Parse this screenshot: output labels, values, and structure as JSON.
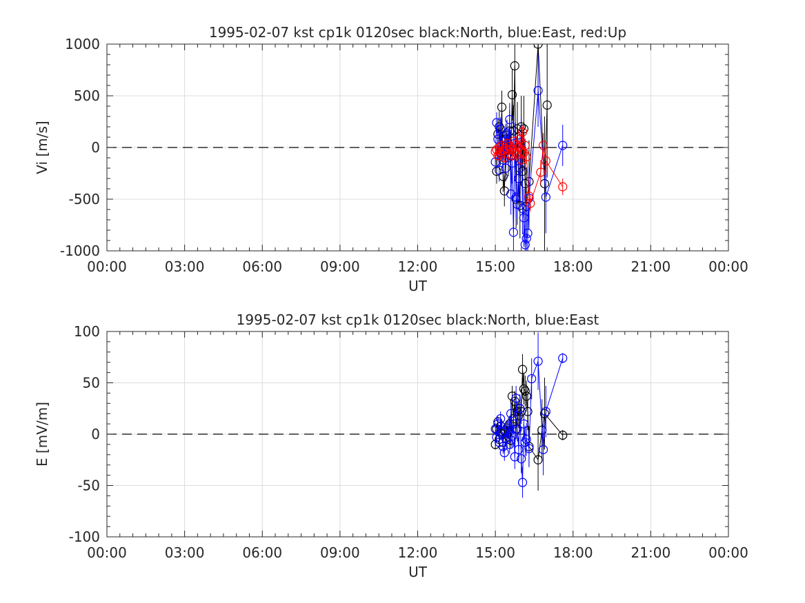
{
  "chart_data": [
    {
      "type": "scatter",
      "title": "1995-02-07 kst cp1k 0120sec black:North, blue:East, red:Up",
      "xlabel": "UT",
      "ylabel": "Vi [m/s]",
      "xlim": [
        0,
        24
      ],
      "ylim": [
        -1000,
        1000
      ],
      "x_tick_values": [
        0,
        3,
        6,
        9,
        12,
        15,
        18,
        21,
        24
      ],
      "x_ticks": [
        "00:00",
        "03:00",
        "06:00",
        "09:00",
        "12:00",
        "15:00",
        "18:00",
        "21:00",
        "00:00"
      ],
      "y_tick_values": [
        -1000,
        -500,
        0,
        500,
        1000
      ],
      "y_ticks": [
        "-1000",
        "-500",
        "0",
        "500",
        "1000"
      ],
      "grid": true,
      "zero_line": "dashed",
      "series": [
        {
          "color": "#000000",
          "x": [
            15.05,
            15.1,
            15.15,
            15.2,
            15.25,
            15.3,
            15.35,
            15.4,
            15.45,
            15.5,
            15.55,
            15.6,
            15.65,
            15.7,
            15.75,
            15.8,
            15.85,
            15.9,
            15.95,
            16.0,
            16.05,
            16.1,
            16.15,
            16.2,
            16.3,
            16.65,
            16.9,
            17.0
          ],
          "y": [
            -230,
            130,
            200,
            -50,
            390,
            -280,
            -420,
            80,
            120,
            -100,
            160,
            -80,
            510,
            160,
            790,
            -500,
            180,
            -300,
            -560,
            200,
            -230,
            180,
            -350,
            -570,
            -330,
            1000,
            -350,
            410
          ],
          "err": [
            120,
            150,
            150,
            120,
            160,
            150,
            150,
            150,
            150,
            180,
            200,
            200,
            250,
            250,
            300,
            280,
            260,
            260,
            320,
            300,
            300,
            320,
            350,
            380,
            400,
            600,
            650,
            700
          ]
        },
        {
          "color": "#0000ff",
          "x": [
            15.0,
            15.05,
            15.1,
            15.15,
            15.2,
            15.25,
            15.3,
            15.35,
            15.4,
            15.45,
            15.5,
            15.55,
            15.6,
            15.65,
            15.7,
            15.75,
            15.8,
            15.85,
            15.9,
            15.95,
            16.0,
            16.05,
            16.1,
            16.15,
            16.2,
            16.25,
            16.3,
            16.65,
            16.95,
            17.6
          ],
          "y": [
            -140,
            240,
            80,
            -220,
            180,
            -20,
            -120,
            60,
            -200,
            140,
            30,
            270,
            -450,
            -150,
            -820,
            40,
            -480,
            -550,
            -300,
            -200,
            50,
            -590,
            -680,
            -940,
            -880,
            -830,
            -490,
            550,
            -480,
            20
          ],
          "err": [
            90,
            100,
            100,
            110,
            110,
            120,
            120,
            120,
            130,
            130,
            140,
            160,
            200,
            200,
            250,
            200,
            200,
            200,
            220,
            220,
            250,
            250,
            280,
            300,
            300,
            300,
            300,
            350,
            350,
            200
          ]
        },
        {
          "color": "#ff0000",
          "x": [
            15.0,
            15.05,
            15.1,
            15.15,
            15.2,
            15.25,
            15.3,
            15.35,
            15.4,
            15.45,
            15.5,
            15.55,
            15.6,
            15.65,
            15.7,
            15.75,
            15.8,
            15.85,
            15.9,
            15.95,
            16.0,
            16.05,
            16.1,
            16.15,
            16.2,
            16.3,
            16.35,
            16.75,
            16.85,
            16.95,
            17.6
          ],
          "y": [
            -40,
            -20,
            -80,
            0,
            -60,
            20,
            -30,
            -100,
            -10,
            40,
            -60,
            10,
            -20,
            -80,
            60,
            -40,
            30,
            -70,
            0,
            80,
            -120,
            150,
            -50,
            20,
            -90,
            -470,
            -540,
            -240,
            20,
            -130,
            -380
          ],
          "err": [
            40,
            40,
            40,
            40,
            40,
            40,
            40,
            45,
            45,
            45,
            45,
            50,
            50,
            50,
            50,
            55,
            55,
            55,
            60,
            60,
            60,
            60,
            65,
            65,
            70,
            80,
            80,
            120,
            120,
            120,
            80
          ]
        }
      ]
    },
    {
      "type": "scatter",
      "title": "1995-02-07 kst cp1k 0120sec black:North, blue:East",
      "xlabel": "UT",
      "ylabel": "E [mV/m]",
      "xlim": [
        0,
        24
      ],
      "ylim": [
        -100,
        100
      ],
      "x_tick_values": [
        0,
        3,
        6,
        9,
        12,
        15,
        18,
        21,
        24
      ],
      "x_ticks": [
        "00:00",
        "03:00",
        "06:00",
        "09:00",
        "12:00",
        "15:00",
        "18:00",
        "21:00",
        "00:00"
      ],
      "y_tick_values": [
        -100,
        -50,
        0,
        50,
        100
      ],
      "y_ticks": [
        "-100",
        "-50",
        "0",
        "50",
        "100"
      ],
      "grid": true,
      "zero_line": "dashed",
      "series": [
        {
          "color": "#000000",
          "x": [
            15.0,
            15.05,
            15.1,
            15.15,
            15.2,
            15.25,
            15.3,
            15.35,
            15.4,
            15.45,
            15.5,
            15.55,
            15.6,
            15.65,
            15.7,
            15.75,
            15.8,
            15.85,
            15.9,
            15.95,
            16.0,
            16.05,
            16.1,
            16.15,
            16.2,
            16.25,
            16.3,
            16.65,
            16.8,
            16.9,
            17.6
          ],
          "y": [
            -10,
            5,
            12,
            -5,
            8,
            0,
            -8,
            3,
            -4,
            6,
            2,
            10,
            -6,
            37,
            15,
            32,
            5,
            22,
            18,
            25,
            22,
            63,
            44,
            42,
            37,
            22,
            -12,
            -25,
            4,
            20,
            -1
          ],
          "err": [
            5,
            5,
            5,
            5,
            6,
            6,
            6,
            6,
            7,
            7,
            7,
            8,
            8,
            10,
            10,
            10,
            10,
            10,
            12,
            12,
            12,
            15,
            15,
            15,
            15,
            18,
            20,
            30,
            30,
            35,
            5
          ]
        },
        {
          "color": "#0000ff",
          "x": [
            15.0,
            15.05,
            15.1,
            15.15,
            15.2,
            15.25,
            15.3,
            15.35,
            15.4,
            15.45,
            15.5,
            15.55,
            15.6,
            15.65,
            15.7,
            15.75,
            15.8,
            15.85,
            15.9,
            15.95,
            16.0,
            16.05,
            16.1,
            16.15,
            16.2,
            16.3,
            16.4,
            16.65,
            16.85,
            16.95,
            17.6
          ],
          "y": [
            5,
            -3,
            10,
            -8,
            15,
            2,
            -12,
            -18,
            4,
            -5,
            8,
            -10,
            20,
            -2,
            10,
            -22,
            35,
            5,
            -15,
            25,
            -24,
            -47,
            10,
            -8,
            -5,
            -14,
            54,
            71,
            -15,
            22,
            74
          ],
          "err": [
            6,
            6,
            6,
            7,
            7,
            7,
            7,
            8,
            8,
            8,
            8,
            9,
            10,
            10,
            10,
            12,
            12,
            12,
            12,
            14,
            14,
            15,
            16,
            16,
            16,
            18,
            20,
            28,
            25,
            25,
            5
          ]
        }
      ]
    }
  ]
}
